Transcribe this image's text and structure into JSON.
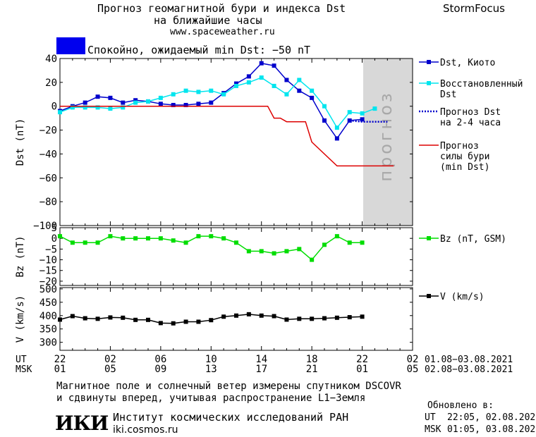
{
  "header": {
    "title_line1": "Прогноз геомагнитной бури и индекса Dst",
    "title_line2": "на ближайшие часы",
    "website": "www.spaceweather.ru",
    "brand": "StormFocus",
    "status_text": "Спокойно, ожидаемый min Dst: −50 nT",
    "status_color": "#0000ee"
  },
  "chart_data": [
    {
      "type": "line",
      "title": "",
      "ylabel": "Dst (nT)",
      "ylim": [
        -100,
        40
      ],
      "y_ticks": [
        "40",
        "20",
        "0",
        "−20",
        "−40",
        "−60",
        "−80",
        "−100"
      ],
      "forecast_label": "прогноз",
      "forecast_shade": "#d8d8d8",
      "x_hours": [
        22,
        23,
        24,
        25,
        26,
        27,
        28,
        29,
        30,
        31,
        32,
        33,
        34,
        35,
        36,
        37,
        38,
        39,
        40,
        41,
        42,
        43,
        44,
        45,
        46
      ],
      "series": [
        {
          "name": "Dst, Киото",
          "color": "#0000cc",
          "style": "line-square",
          "x": [
            22,
            23,
            24,
            25,
            26,
            27,
            28,
            29,
            30,
            31,
            32,
            33,
            34,
            35,
            36,
            37,
            38,
            39,
            40,
            41,
            42,
            43,
            44,
            45,
            46
          ],
          "values": [
            -4,
            0,
            3,
            8,
            7,
            3,
            5,
            4,
            2,
            1,
            1,
            2,
            3,
            11,
            19,
            25,
            36,
            34,
            22,
            13,
            7,
            -12,
            -27,
            -12,
            -11
          ]
        },
        {
          "name": "Восстановленный Dst",
          "color": "#00e5ee",
          "style": "line-square",
          "x": [
            22,
            23,
            24,
            25,
            26,
            27,
            28,
            29,
            30,
            31,
            32,
            33,
            34,
            35,
            36,
            37,
            38,
            39,
            40,
            41,
            42,
            43,
            44,
            45,
            46,
            47
          ],
          "values": [
            -5,
            -1,
            -1,
            -1,
            -2,
            -1,
            3,
            4,
            7,
            10,
            13,
            12,
            13,
            10,
            17,
            20,
            24,
            17,
            10,
            22,
            13,
            0,
            -18,
            -5,
            -6,
            -2
          ]
        },
        {
          "name": "Прогноз Dst на 2-4 часа",
          "color": "#0000cc",
          "style": "dotted",
          "x": [
            45,
            46,
            47,
            48
          ],
          "values": [
            -12,
            -13,
            -13,
            -13
          ]
        },
        {
          "name": "Прогноз силы бури (min Dst)",
          "color": "#dd0000",
          "style": "line",
          "x": [
            22,
            37,
            38.5,
            39,
            39.5,
            40,
            41,
            41.5,
            42,
            44,
            48.5
          ],
          "values": [
            0,
            0,
            0,
            -10,
            -10,
            -13,
            -13,
            -13,
            -30,
            -50,
            -50
          ]
        }
      ]
    },
    {
      "type": "line",
      "ylabel": "Bz (nT)",
      "ylim": [
        -22,
        5
      ],
      "y_ticks": [
        "5",
        "0",
        "−5",
        "−10",
        "−15",
        "−20"
      ],
      "series": [
        {
          "name": "Bz (nT, GSM)",
          "color": "#00dd00",
          "style": "line-square",
          "x": [
            22,
            23,
            24,
            25,
            26,
            27,
            28,
            29,
            30,
            31,
            32,
            33,
            34,
            35,
            36,
            37,
            38,
            39,
            40,
            41,
            42,
            43,
            44,
            45,
            46
          ],
          "values": [
            1,
            -2,
            -2,
            -2,
            1,
            0,
            0,
            0,
            0,
            -1,
            -2,
            1,
            1,
            0,
            -2,
            -6,
            -6,
            -7,
            -6,
            -5,
            -10,
            -3,
            1,
            -2,
            -2
          ]
        }
      ]
    },
    {
      "type": "line",
      "ylabel": "V (km/s)",
      "ylim": [
        270,
        505
      ],
      "y_ticks": [
        "500",
        "450",
        "400",
        "350",
        "300"
      ],
      "series": [
        {
          "name": "V (km/s)",
          "color": "#000000",
          "style": "line-square",
          "x": [
            22,
            23,
            24,
            25,
            26,
            27,
            28,
            29,
            30,
            31,
            32,
            33,
            34,
            35,
            36,
            37,
            38,
            39,
            40,
            41,
            42,
            43,
            44,
            45,
            46
          ],
          "values": [
            385,
            398,
            390,
            388,
            393,
            392,
            384,
            384,
            372,
            371,
            377,
            377,
            383,
            396,
            400,
            405,
            400,
            398,
            385,
            388,
            388,
            390,
            392,
            394,
            396
          ]
        }
      ]
    }
  ],
  "x_axis": {
    "ut_label": "UT",
    "msk_label": "MSK",
    "ut_ticks": [
      "22",
      "02",
      "06",
      "10",
      "14",
      "18",
      "22",
      "02"
    ],
    "msk_ticks": [
      "01",
      "05",
      "09",
      "13",
      "17",
      "21",
      "01",
      "05"
    ],
    "ut_range": "01.08−03.08.2021",
    "msk_range": "02.08−03.08.2021"
  },
  "footer": {
    "note_line1": "Магнитное поле и солнечный ветер измерены спутником DSCOVR",
    "note_line2": "и сдвинуты вперед, учитывая распространение L1−Земля",
    "logo_text": "ИКИ",
    "institute": "Институт космических исследований РАН",
    "institute_site": "iki.cosmos.ru",
    "updated_label": "Обновлено в:",
    "updated_ut_label": "UT",
    "updated_ut": "22:05, 02.08.2021",
    "updated_msk_label": "MSK",
    "updated_msk": "01:05, 03.08.2021"
  }
}
